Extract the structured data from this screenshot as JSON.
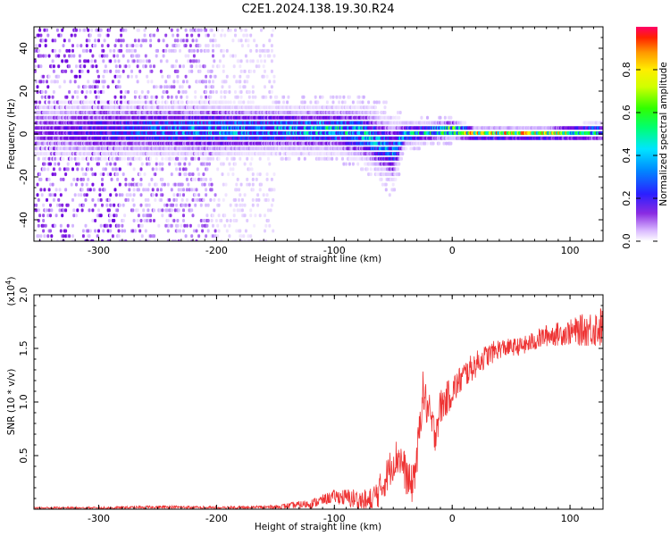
{
  "figure_title": "C2E1.2024.138.19.30.R24",
  "chart_data": [
    {
      "type": "heatmap",
      "xlabel": "Height of straight line (km)",
      "ylabel": "Frequency (Hz)",
      "xlim": [
        -355,
        128
      ],
      "ylim": [
        -50,
        50
      ],
      "xticks": [
        -300,
        -200,
        -100,
        0,
        100
      ],
      "yticks": [
        -40,
        -20,
        0,
        20,
        40
      ],
      "colorbar": {
        "label": "Normalized spectral amplitude",
        "range": [
          0,
          1
        ],
        "ticks": [
          0.0,
          0.2,
          0.4,
          0.6,
          0.8
        ],
        "colormap": [
          "#ffffff",
          "#e8d8ff",
          "#c9a6ff",
          "#8a2be2",
          "#6a00e0",
          "#2f1dff",
          "#0066ff",
          "#00d2ff",
          "#00ff80",
          "#33ff00",
          "#c8ff00",
          "#ffff00",
          "#ff9900",
          "#ff2a00",
          "#ff0060"
        ]
      },
      "ridge": [
        {
          "x": -355,
          "center": 2,
          "halfwidth": 9,
          "amp": 0.25
        },
        {
          "x": -300,
          "center": 2,
          "halfwidth": 9,
          "amp": 0.35
        },
        {
          "x": -250,
          "center": 2,
          "halfwidth": 8,
          "amp": 0.45
        },
        {
          "x": -200,
          "center": 2,
          "halfwidth": 8,
          "amp": 0.5
        },
        {
          "x": -150,
          "center": 2,
          "halfwidth": 7,
          "amp": 0.5
        },
        {
          "x": -100,
          "center": 2,
          "halfwidth": 7,
          "amp": 0.55
        },
        {
          "x": -75,
          "center": 0,
          "halfwidth": 8,
          "amp": 0.55
        },
        {
          "x": -50,
          "center": -8,
          "halfwidth": 10,
          "amp": 0.45
        },
        {
          "x": -40,
          "center": 0,
          "halfwidth": 4,
          "amp": 0.5
        },
        {
          "x": -20,
          "center": 1,
          "halfwidth": 3,
          "amp": 0.6
        },
        {
          "x": 0,
          "center": 2,
          "halfwidth": 3,
          "amp": 0.7
        },
        {
          "x": 20,
          "center": 0,
          "halfwidth": 2,
          "amp": 0.85
        },
        {
          "x": 80,
          "center": 0,
          "halfwidth": 2,
          "amp": 0.85
        },
        {
          "x": 128,
          "center": 1,
          "halfwidth": 3,
          "amp": 0.55
        }
      ],
      "scatter_noise": {
        "xmin": -355,
        "xmax": -150,
        "density": "high"
      }
    },
    {
      "type": "line",
      "xlabel": "Height of straight line (km)",
      "ylabel": "SNR (10 * v/v)",
      "scale_note": "(x10",
      "scale_exponent": "4",
      "scale_close": ")",
      "xlim": [
        -355,
        128
      ],
      "ylim": [
        0,
        2.0
      ],
      "xticks": [
        -300,
        -200,
        -100,
        0,
        100
      ],
      "yticks": [
        0.5,
        1.0,
        1.5,
        2.0
      ],
      "color": "#ee3333",
      "envelope": [
        {
          "x": -355,
          "y": 0.01
        },
        {
          "x": -300,
          "y": 0.01
        },
        {
          "x": -240,
          "y": 0.02
        },
        {
          "x": -200,
          "y": 0.01
        },
        {
          "x": -150,
          "y": 0.02
        },
        {
          "x": -120,
          "y": 0.05
        },
        {
          "x": -100,
          "y": 0.12
        },
        {
          "x": -85,
          "y": 0.1
        },
        {
          "x": -70,
          "y": 0.06
        },
        {
          "x": -60,
          "y": 0.2
        },
        {
          "x": -50,
          "y": 0.45
        },
        {
          "x": -45,
          "y": 0.5
        },
        {
          "x": -40,
          "y": 0.35
        },
        {
          "x": -35,
          "y": 0.2
        },
        {
          "x": -30,
          "y": 0.45
        },
        {
          "x": -25,
          "y": 1.1
        },
        {
          "x": -20,
          "y": 0.9
        },
        {
          "x": -15,
          "y": 0.7
        },
        {
          "x": -10,
          "y": 0.95
        },
        {
          "x": 0,
          "y": 1.1
        },
        {
          "x": 10,
          "y": 1.25
        },
        {
          "x": 25,
          "y": 1.4
        },
        {
          "x": 40,
          "y": 1.5
        },
        {
          "x": 60,
          "y": 1.52
        },
        {
          "x": 80,
          "y": 1.62
        },
        {
          "x": 100,
          "y": 1.65
        },
        {
          "x": 115,
          "y": 1.68
        },
        {
          "x": 128,
          "y": 1.7
        }
      ],
      "noise": [
        {
          "x": -355,
          "amp": 0.01
        },
        {
          "x": -150,
          "amp": 0.02
        },
        {
          "x": -100,
          "amp": 0.06
        },
        {
          "x": -50,
          "amp": 0.18
        },
        {
          "x": -20,
          "amp": 0.2
        },
        {
          "x": 0,
          "amp": 0.15
        },
        {
          "x": 50,
          "amp": 0.08
        },
        {
          "x": 100,
          "amp": 0.12
        },
        {
          "x": 128,
          "amp": 0.2
        }
      ]
    }
  ]
}
